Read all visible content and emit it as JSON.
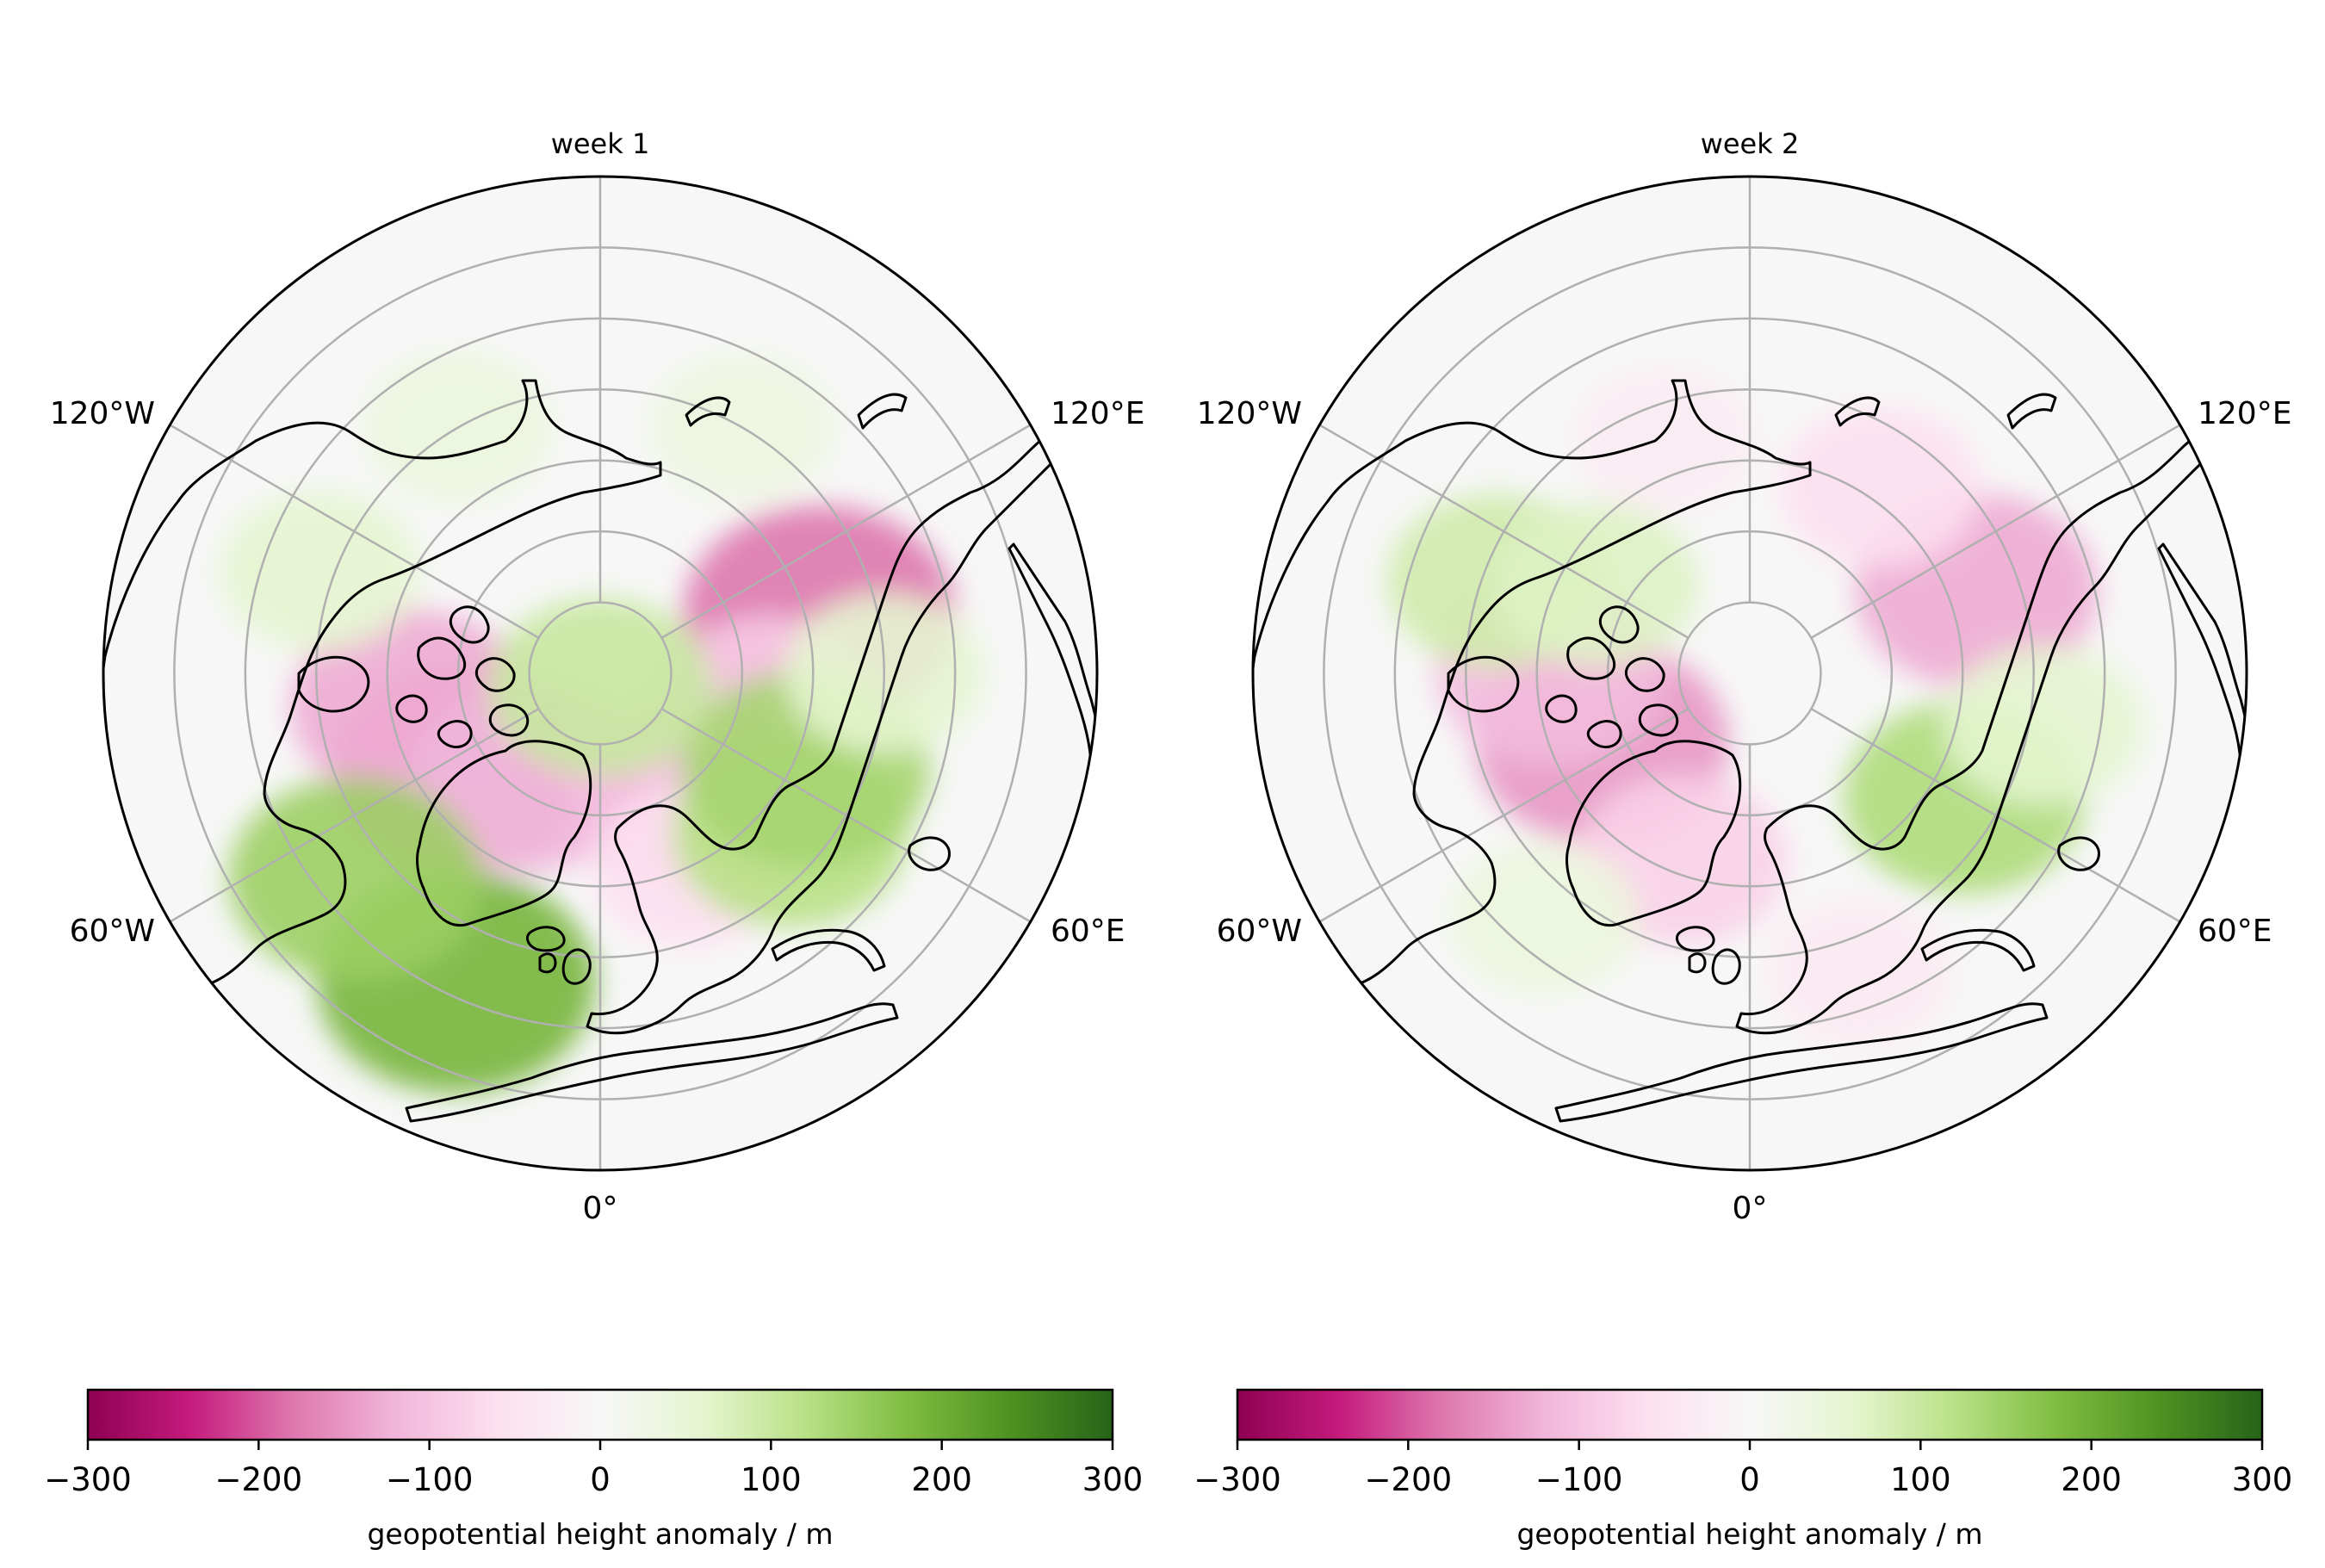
{
  "figure": {
    "panels": [
      {
        "title": "week 1",
        "lon_labels": [
          "120°W",
          "120°E",
          "60°W",
          "60°E",
          "0°"
        ],
        "anomaly_blobs": [
          {
            "lon": -105,
            "lat": 58,
            "value": -180
          },
          {
            "lon": -80,
            "lat": 66,
            "value": -90
          },
          {
            "lon": 55,
            "lat": 66,
            "value": -150
          },
          {
            "lon": 80,
            "lat": 63,
            "value": -130
          },
          {
            "lon": 35,
            "lat": 72,
            "value": -120
          },
          {
            "lon": -35,
            "lat": 70,
            "value": -110
          },
          {
            "lon": -25,
            "lat": 60,
            "value": -60
          },
          {
            "lon": -50,
            "lat": 55,
            "value": 120
          },
          {
            "lon": -65,
            "lat": 58,
            "value": 140
          },
          {
            "lon": -90,
            "lat": 50,
            "value": 60
          },
          {
            "lon": 25,
            "lat": 42,
            "value": 190
          },
          {
            "lon": 50,
            "lat": 45,
            "value": 150
          },
          {
            "lon": 0,
            "lat": 88,
            "value": 100
          },
          {
            "lon": 110,
            "lat": 48,
            "value": 60
          },
          {
            "lon": 150,
            "lat": 50,
            "value": 40
          },
          {
            "lon": -150,
            "lat": 50,
            "value": 35
          }
        ]
      },
      {
        "title": "week 2",
        "lon_labels": [
          "120°W",
          "120°E",
          "60°W",
          "60°E",
          "0°"
        ],
        "anomaly_blobs": [
          {
            "lon": -110,
            "lat": 56,
            "value": -130
          },
          {
            "lon": -145,
            "lat": 58,
            "value": -60
          },
          {
            "lon": 65,
            "lat": 67,
            "value": -150
          },
          {
            "lon": 90,
            "lat": 62,
            "value": -110
          },
          {
            "lon": 20,
            "lat": 62,
            "value": -80
          },
          {
            "lon": -60,
            "lat": 55,
            "value": 130
          },
          {
            "lon": -80,
            "lat": 48,
            "value": 60
          },
          {
            "lon": 110,
            "lat": 52,
            "value": 90
          },
          {
            "lon": 120,
            "lat": 65,
            "value": 70
          },
          {
            "lon": 40,
            "lat": 45,
            "value": 40
          },
          {
            "lon": -20,
            "lat": 45,
            "value": -35
          },
          {
            "lon": 160,
            "lat": 55,
            "value": -30
          }
        ]
      }
    ],
    "colorbar": {
      "label": "geopotential height anomaly / m",
      "vmin": -300,
      "vmax": 300,
      "tick_labels": [
        "−300",
        "−200",
        "−100",
        "0",
        "100",
        "200",
        "300"
      ],
      "colormap": [
        "#8e0152",
        "#c51b7d",
        "#de77ae",
        "#f1b6da",
        "#fde0ef",
        "#f7f7f7",
        "#e6f5d0",
        "#b8e186",
        "#7fbc41",
        "#4d9221",
        "#276419"
      ]
    }
  }
}
